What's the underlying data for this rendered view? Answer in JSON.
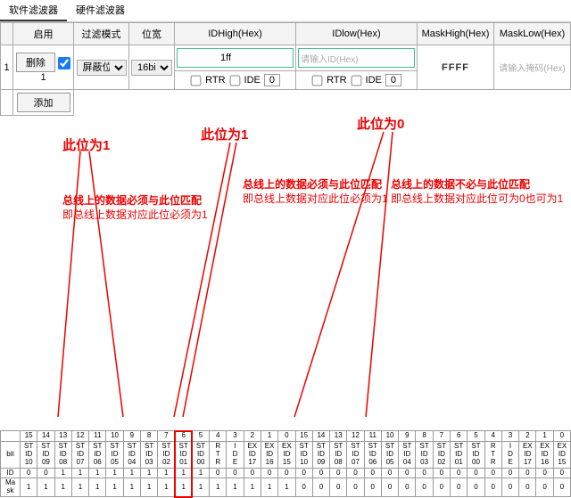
{
  "tabs": {
    "soft": "软件滤波器",
    "hard": "硬件滤波器",
    "active": 0
  },
  "headers": {
    "blank": "",
    "enable": "启用",
    "mode": "过滤模式",
    "width": "位宽",
    "idhigh": "IDHigh(Hex)",
    "idlow": "IDlow(Hex)",
    "maskhigh": "MaskHigh(Hex)",
    "masklow": "MaskLow(Hex)"
  },
  "row": {
    "idx": "1",
    "deleteLabel": "删除",
    "enableLabel": "1",
    "mode": "屏蔽位",
    "width": "16bit",
    "idhigh_val": "1ff",
    "idlow_ph": "请输入ID(Hex)",
    "rtr": "RTR",
    "ide": "IDE",
    "zero": "0",
    "maskhigh_val": "FFFF",
    "masklow_ph": "请输入掩码(Hex)"
  },
  "addLabel": "添加",
  "anno": {
    "t1": "此位为1",
    "t2": "此位为1",
    "t3": "此位为0",
    "l1a": "总线上的数据必须与此位匹配",
    "l1b": "即总线上数据对应此位必须为1",
    "l2a": "总线上的数据必须与此位匹配",
    "l2b": "即总线上数据对应此位必须为1",
    "l3a": "总线上的数据不必与此位匹配",
    "l3b": "即总线上数据对应此位可为0也可为1",
    "color": "#ee0000"
  },
  "bit": {
    "topIdx": [
      "15",
      "14",
      "13",
      "12",
      "11",
      "10",
      "9",
      "8",
      "7",
      "6",
      "5",
      "4",
      "3",
      "2",
      "1",
      "0",
      "15",
      "14",
      "13",
      "12",
      "11",
      "10",
      "9",
      "8",
      "7",
      "6",
      "5",
      "4",
      "3",
      "2",
      "1",
      "0"
    ],
    "bitLbl": "bit",
    "bitNames": [
      "ST\nID\n10",
      "ST\nID\n09",
      "ST\nID\n08",
      "ST\nID\n07",
      "ST\nID\n06",
      "ST\nID\n05",
      "ST\nID\n04",
      "ST\nID\n03",
      "ST\nID\n02",
      "ST\nID\n01",
      "ST\nID\n00",
      "R\nT\nR",
      "I\nD\nE",
      "EX\nID\n17",
      "EX\nID\n16",
      "EX\nID\n15",
      "ST\nID\n10",
      "ST\nID\n09",
      "ST\nID\n08",
      "ST\nID\n07",
      "ST\nID\n06",
      "ST\nID\n05",
      "ST\nID\n04",
      "ST\nID\n03",
      "ST\nID\n02",
      "ST\nID\n01",
      "ST\nID\n00",
      "R\nT\nR",
      "I\nD\nE",
      "EX\nID\n17",
      "EX\nID\n16",
      "EX\nID\n15"
    ],
    "idLbl": "ID",
    "idVals": [
      "0",
      "0",
      "1",
      "1",
      "1",
      "1",
      "1",
      "1",
      "1",
      "1",
      "1",
      "0",
      "0",
      "0",
      "0",
      "0",
      "0",
      "0",
      "0",
      "0",
      "0",
      "0",
      "0",
      "0",
      "0",
      "0",
      "0",
      "0",
      "0",
      "0",
      "0",
      "0"
    ],
    "maskLbl": "Ma\nsk",
    "maskVals": [
      "1",
      "1",
      "1",
      "1",
      "1",
      "1",
      "1",
      "1",
      "1",
      "1",
      "1",
      "1",
      "1",
      "1",
      "1",
      "1",
      "0",
      "0",
      "0",
      "0",
      "0",
      "0",
      "0",
      "0",
      "0",
      "0",
      "0",
      "0",
      "0",
      "0",
      "0",
      "0"
    ]
  }
}
